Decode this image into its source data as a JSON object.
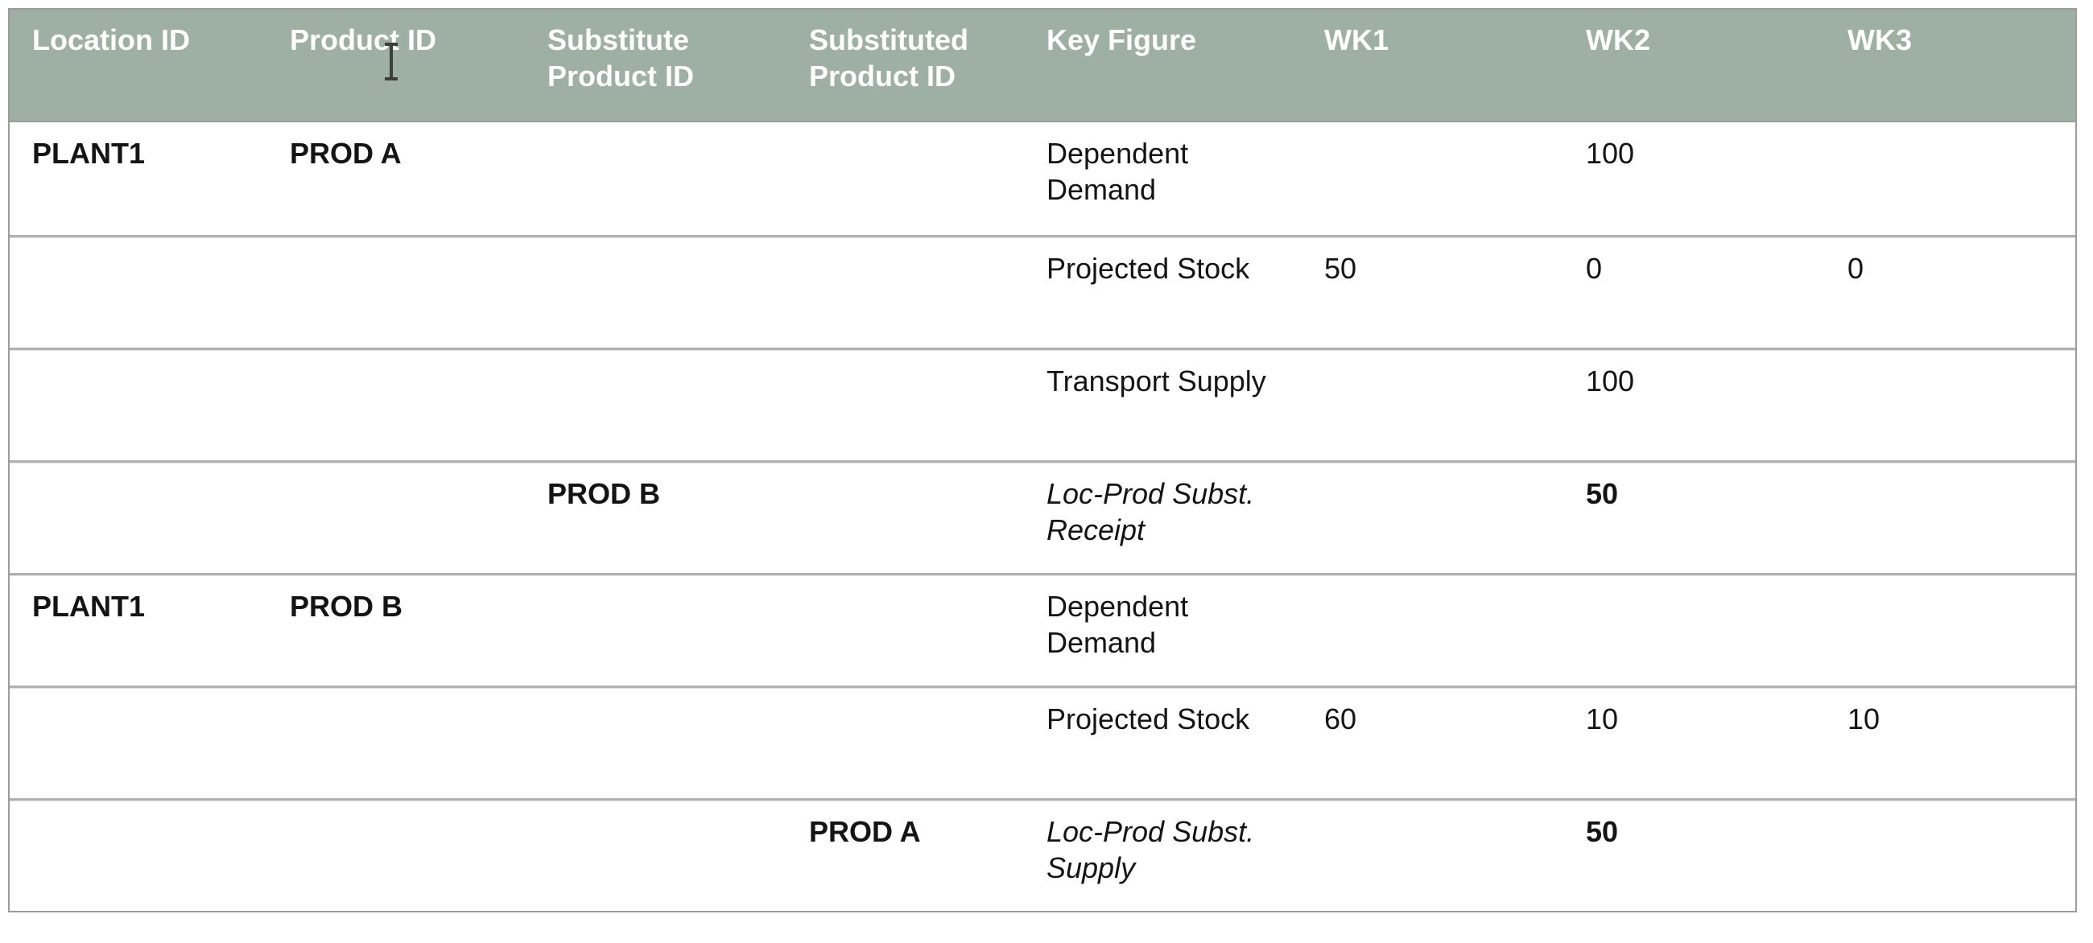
{
  "colors": {
    "header_bg": "#9eb0a4",
    "header_text": "#ffffff",
    "row_border": "#b1b1b1",
    "table_border": "#9c9c9c",
    "body_text": "#141414"
  },
  "icons": {
    "text_cursor": "i-beam-text-cursor"
  },
  "table": {
    "headers": [
      "Location ID",
      "Product ID",
      "Substitute Product ID",
      "Substituted Product ID",
      "Key Figure",
      "WK1",
      "WK2",
      "WK3"
    ],
    "rows": [
      {
        "location_id": "PLANT1",
        "product_id": "PROD A",
        "substitute_product_id": "",
        "substituted_product_id": "",
        "key_figure": "Dependent Demand",
        "wk1": "",
        "wk2": "100",
        "wk3": ""
      },
      {
        "location_id": "",
        "product_id": "",
        "substitute_product_id": "",
        "substituted_product_id": "",
        "key_figure": "Projected Stock",
        "wk1": "50",
        "wk2": "0",
        "wk3": "0"
      },
      {
        "location_id": "",
        "product_id": "",
        "substitute_product_id": "",
        "substituted_product_id": "",
        "key_figure": "Transport Supply",
        "wk1": "",
        "wk2": "100",
        "wk3": ""
      },
      {
        "location_id": "",
        "product_id": "",
        "substitute_product_id": "PROD B",
        "substituted_product_id": "",
        "key_figure": "Loc-Prod Subst. Receipt",
        "wk1": "",
        "wk2": "50",
        "wk3": ""
      },
      {
        "location_id": "PLANT1",
        "product_id": "PROD B",
        "substitute_product_id": "",
        "substituted_product_id": "",
        "key_figure": "Dependent Demand",
        "wk1": "",
        "wk2": "",
        "wk3": ""
      },
      {
        "location_id": "",
        "product_id": "",
        "substitute_product_id": "",
        "substituted_product_id": "",
        "key_figure": "Projected Stock",
        "wk1": "60",
        "wk2": "10",
        "wk3": "10"
      },
      {
        "location_id": "",
        "product_id": "",
        "substitute_product_id": "",
        "substituted_product_id": "PROD A",
        "key_figure": "Loc-Prod Subst. Supply",
        "wk1": "",
        "wk2": "50",
        "wk3": ""
      }
    ]
  }
}
